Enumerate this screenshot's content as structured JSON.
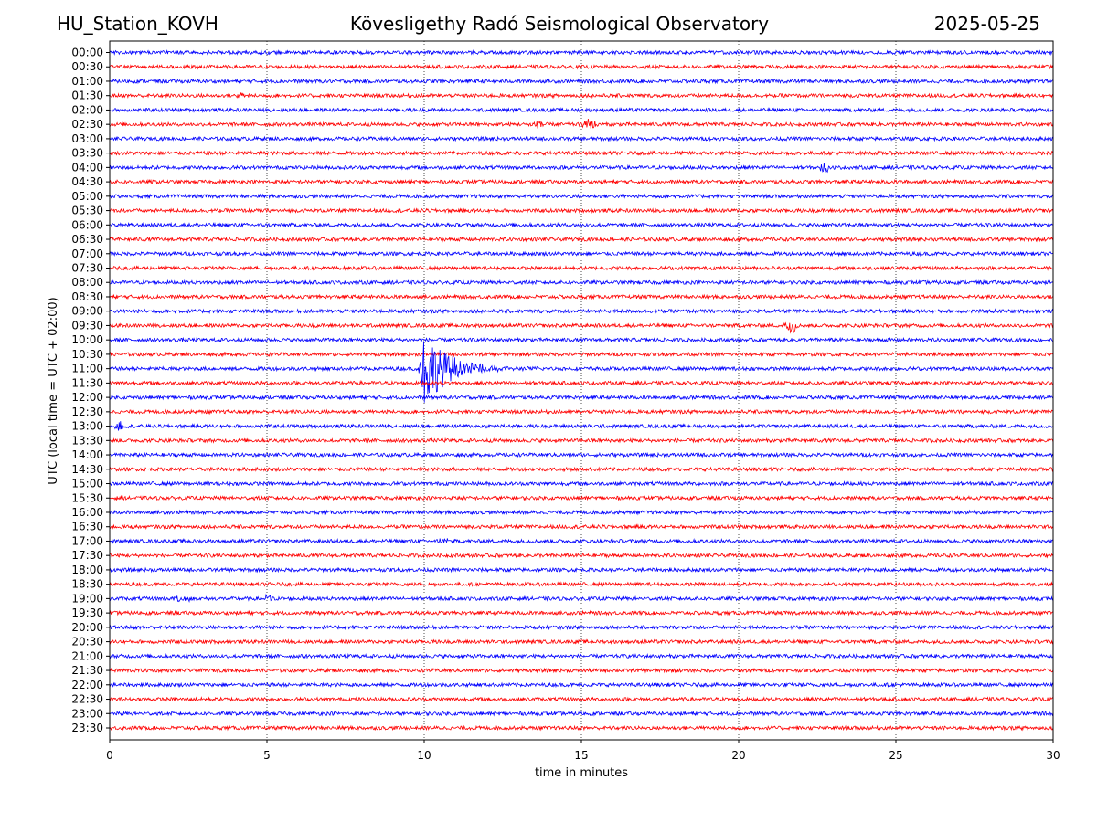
{
  "header": {
    "station": "HU_Station_KOVH",
    "observatory": "Kövesligethy Radó Seismological Observatory",
    "date": "2025-05-25"
  },
  "chart_data": {
    "type": "line",
    "title": "Kövesligethy Radó Seismological Observatory",
    "xlabel": "time in minutes",
    "ylabel": "UTC (local time = UTC + 02:00)",
    "xlim": [
      0,
      30
    ],
    "x_ticks": [
      "0",
      "5",
      "10",
      "15",
      "20",
      "25",
      "30"
    ],
    "x_tick_values": [
      0,
      5,
      10,
      15,
      20,
      25,
      30
    ],
    "row_labels": [
      "00:00",
      "00:30",
      "01:00",
      "01:30",
      "02:00",
      "02:30",
      "03:00",
      "03:30",
      "04:00",
      "04:30",
      "05:00",
      "05:30",
      "06:00",
      "06:30",
      "07:00",
      "07:30",
      "08:00",
      "08:30",
      "09:00",
      "09:30",
      "10:00",
      "10:30",
      "11:00",
      "11:30",
      "12:00",
      "12:30",
      "13:00",
      "13:30",
      "14:00",
      "14:30",
      "15:00",
      "15:30",
      "16:00",
      "16:30",
      "17:00",
      "17:30",
      "18:00",
      "18:30",
      "19:00",
      "19:30",
      "20:00",
      "20:30",
      "21:00",
      "21:30",
      "22:00",
      "22:30",
      "23:00",
      "23:30"
    ],
    "grid": "vertical dotted at x ticks",
    "colors": [
      "#0000ff",
      "#ff0000"
    ],
    "events": [
      {
        "row": "11:00",
        "start_min": 9.8,
        "end_min": 15.5,
        "peak_amplitude": 3.5
      },
      {
        "row": "09:30",
        "start_min": 21.4,
        "end_min": 21.9,
        "peak_amplitude": 0.7
      },
      {
        "row": "02:30",
        "start_min": 13.3,
        "end_min": 13.9,
        "peak_amplitude": 0.5
      },
      {
        "row": "02:30",
        "start_min": 15.0,
        "end_min": 15.6,
        "peak_amplitude": 0.5
      },
      {
        "row": "13:00",
        "start_min": 0.0,
        "end_min": 0.5,
        "peak_amplitude": 0.5
      },
      {
        "row": "04:00",
        "start_min": 22.5,
        "end_min": 23.0,
        "peak_amplitude": 0.4
      },
      {
        "row": "01:30",
        "start_min": 4.0,
        "end_min": 4.4,
        "peak_amplitude": 0.35
      },
      {
        "row": "19:00",
        "start_min": 2.0,
        "end_min": 2.6,
        "peak_amplitude": 0.35
      },
      {
        "row": "19:00",
        "start_min": 4.9,
        "end_min": 5.2,
        "peak_amplitude": 0.35
      },
      {
        "row": "17:00",
        "start_min": 10.4,
        "end_min": 10.8,
        "peak_amplitude": 0.3
      }
    ]
  }
}
